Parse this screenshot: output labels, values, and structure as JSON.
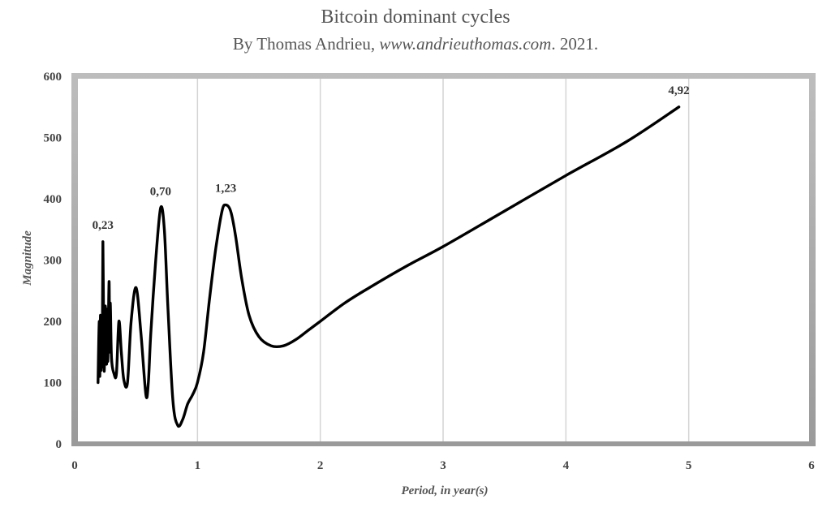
{
  "chart_data": {
    "type": "line",
    "title": "Bitcoin dominant cycles",
    "subtitle": {
      "prefix": "By Thomas Andrieu, ",
      "site": "www.andrieuthomas.com",
      "suffix": ". 2021."
    },
    "xlabel": "Period, in year(s)",
    "ylabel": "Magnitude",
    "xlim": [
      0,
      6
    ],
    "ylim": [
      0,
      600
    ],
    "x_ticks": [
      0,
      1,
      2,
      3,
      4,
      5,
      6
    ],
    "y_ticks": [
      0,
      100,
      200,
      300,
      400,
      500,
      600
    ],
    "grid": "vertical",
    "legend": "none",
    "line_color": "#000000",
    "series": [
      {
        "x": [
          0.19,
          0.2,
          0.205,
          0.21,
          0.215,
          0.22,
          0.225,
          0.23,
          0.24,
          0.25,
          0.26,
          0.265,
          0.27,
          0.28,
          0.285,
          0.29,
          0.3,
          0.32,
          0.34,
          0.36,
          0.38,
          0.4,
          0.43,
          0.46,
          0.5,
          0.54,
          0.58,
          0.6,
          0.62,
          0.66,
          0.7,
          0.73,
          0.76,
          0.8,
          0.84,
          0.88,
          0.92,
          0.96,
          1.0,
          1.05,
          1.1,
          1.15,
          1.2,
          1.23,
          1.27,
          1.31,
          1.36,
          1.42,
          1.5,
          1.6,
          1.7,
          1.8,
          1.9,
          2.0,
          2.2,
          2.4,
          2.7,
          3.0,
          3.5,
          4.0,
          4.5,
          4.92
        ],
        "y": [
          100,
          200,
          110,
          210,
          120,
          180,
          130,
          330,
          120,
          225,
          130,
          220,
          135,
          265,
          150,
          230,
          140,
          115,
          115,
          200,
          150,
          105,
          100,
          200,
          255,
          180,
          80,
          100,
          180,
          300,
          385,
          350,
          220,
          70,
          30,
          40,
          65,
          80,
          100,
          150,
          240,
          320,
          380,
          390,
          380,
          340,
          270,
          210,
          175,
          160,
          160,
          170,
          185,
          200,
          230,
          255,
          290,
          322,
          380,
          438,
          494,
          550
        ]
      }
    ],
    "annotations": [
      {
        "x": 0.23,
        "y": 330,
        "text": "0,23"
      },
      {
        "x": 0.7,
        "y": 385,
        "text": "0,70"
      },
      {
        "x": 1.23,
        "y": 390,
        "text": "1,23"
      },
      {
        "x": 4.92,
        "y": 550,
        "text": "4,92"
      }
    ]
  }
}
